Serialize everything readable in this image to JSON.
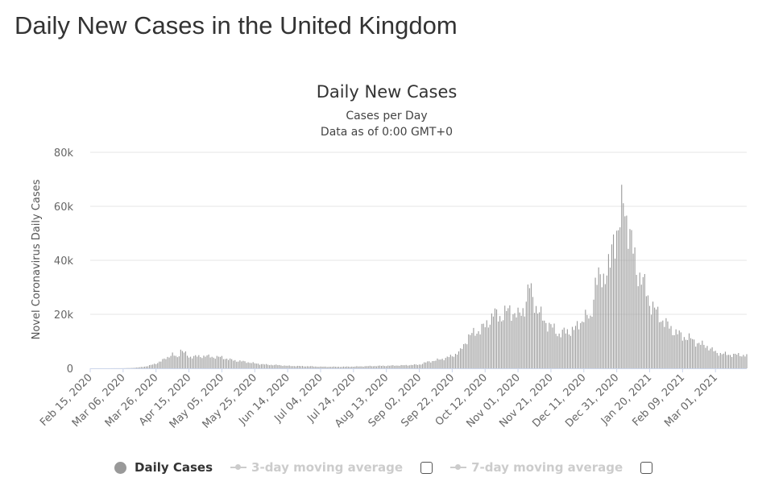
{
  "page": {
    "title": "Daily New Cases in the United Kingdom"
  },
  "colors": {
    "bars": "#999999",
    "grid": "#e6e6e6",
    "axis_line": "#ccd6eb",
    "inactive_legend": "#cccccc"
  },
  "legend": {
    "items": [
      {
        "label": "Daily Cases",
        "state": "active",
        "icon": "circle-marker-icon"
      },
      {
        "label": "3-day moving average",
        "state": "inactive",
        "icon": "line-marker-icon",
        "checkbox": false
      },
      {
        "label": "7-day moving average",
        "state": "inactive",
        "icon": "line-marker-icon",
        "checkbox": false
      }
    ]
  },
  "chart_data": {
    "type": "bar",
    "title": "Daily New Cases",
    "subtitle": "Cases per Day",
    "subtitle2": "Data as of 0:00 GMT+0",
    "ylabel": "Novel Coronavirus Daily Cases",
    "xlabel": "",
    "ylim": [
      0,
      80000
    ],
    "yticks": [
      0,
      20000,
      40000,
      60000,
      80000
    ],
    "ytick_labels": [
      "0",
      "20k",
      "40k",
      "60k",
      "80k"
    ],
    "xtick_labels": [
      "Feb 15, 2020",
      "Mar 06, 2020",
      "Mar 26, 2020",
      "Apr 15, 2020",
      "May 05, 2020",
      "May 25, 2020",
      "Jun 14, 2020",
      "Jul 04, 2020",
      "Jul 24, 2020",
      "Aug 13, 2020",
      "Sep 02, 2020",
      "Sep 22, 2020",
      "Oct 12, 2020",
      "Nov 01, 2020",
      "Nov 21, 2020",
      "Dec 11, 2020",
      "Dec 31, 2020",
      "Jan 20, 2021",
      "Feb 09, 2021",
      "Mar 01, 2021"
    ],
    "x_start": "2020-02-15",
    "x_end": "2021-03-20",
    "grid": true,
    "legend_position": "bottom",
    "series": [
      {
        "name": "Daily Cases",
        "x": [
          "2020-02-15",
          "2020-02-20",
          "2020-02-25",
          "2020-03-01",
          "2020-03-06",
          "2020-03-11",
          "2020-03-16",
          "2020-03-21",
          "2020-03-26",
          "2020-03-29",
          "2020-04-01",
          "2020-04-05",
          "2020-04-08",
          "2020-04-10",
          "2020-04-15",
          "2020-04-20",
          "2020-04-25",
          "2020-04-30",
          "2020-05-05",
          "2020-05-10",
          "2020-05-15",
          "2020-05-20",
          "2020-05-25",
          "2020-06-01",
          "2020-06-08",
          "2020-06-14",
          "2020-06-21",
          "2020-06-28",
          "2020-07-04",
          "2020-07-14",
          "2020-07-24",
          "2020-08-03",
          "2020-08-13",
          "2020-08-23",
          "2020-09-02",
          "2020-09-07",
          "2020-09-12",
          "2020-09-17",
          "2020-09-22",
          "2020-09-27",
          "2020-10-02",
          "2020-10-07",
          "2020-10-12",
          "2020-10-17",
          "2020-10-22",
          "2020-10-27",
          "2020-11-01",
          "2020-11-05",
          "2020-11-08",
          "2020-11-12",
          "2020-11-16",
          "2020-11-21",
          "2020-11-26",
          "2020-12-01",
          "2020-12-06",
          "2020-12-11",
          "2020-12-15",
          "2020-12-18",
          "2020-12-21",
          "2020-12-24",
          "2020-12-27",
          "2020-12-29",
          "2020-12-31",
          "2021-01-02",
          "2021-01-04",
          "2021-01-06",
          "2021-01-08",
          "2021-01-10",
          "2021-01-12",
          "2021-01-15",
          "2021-01-20",
          "2021-01-25",
          "2021-01-30",
          "2021-02-04",
          "2021-02-09",
          "2021-02-14",
          "2021-02-19",
          "2021-02-24",
          "2021-03-01",
          "2021-03-06",
          "2021-03-11",
          "2021-03-16",
          "2021-03-20"
        ],
        "y": [
          0,
          2,
          3,
          30,
          50,
          150,
          400,
          900,
          2000,
          2800,
          4300,
          5500,
          4500,
          7500,
          4700,
          4800,
          5000,
          4600,
          4500,
          3500,
          3000,
          2600,
          2000,
          1500,
          1300,
          1000,
          900,
          800,
          650,
          620,
          700,
          900,
          1050,
          1200,
          1500,
          2600,
          3200,
          4000,
          5000,
          7000,
          13000,
          15000,
          17000,
          22000,
          21000,
          24000,
          21000,
          25000,
          33000,
          25000,
          20000,
          17000,
          14000,
          15000,
          16000,
          21000,
          20000,
          35000,
          36000,
          39000,
          41000,
          53000,
          56000,
          58000,
          68000,
          62000,
          55000,
          47000,
          40000,
          37000,
          27000,
          22000,
          18000,
          15000,
          13000,
          12000,
          10000,
          9000,
          6500,
          5800,
          5500,
          5500,
          5200
        ]
      }
    ]
  }
}
